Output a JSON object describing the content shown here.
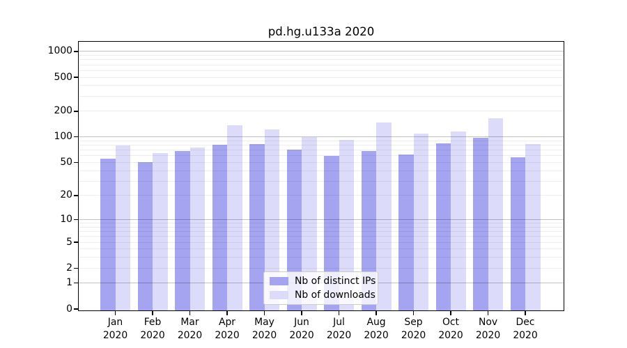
{
  "title": "pd.hg.u133a 2020",
  "chart_data": {
    "type": "bar",
    "title": "pd.hg.u133a 2020",
    "x_months": [
      "Jan",
      "Feb",
      "Mar",
      "Apr",
      "May",
      "Jun",
      "Jul",
      "Aug",
      "Sep",
      "Oct",
      "Nov",
      "Dec"
    ],
    "x_year": "2020",
    "series": [
      {
        "name": "Nb of distinct IPs",
        "color": "#a4a4f0",
        "values": [
          55,
          50,
          68,
          81,
          83,
          71,
          60,
          68,
          62,
          84,
          97,
          58
        ]
      },
      {
        "name": "Nb of downloads",
        "color": "#dcdcfa",
        "values": [
          80,
          65,
          75,
          138,
          122,
          100,
          93,
          148,
          110,
          116,
          165,
          82
        ]
      }
    ],
    "yscale": "log10(value+1)",
    "yticks": [
      0,
      1,
      2,
      5,
      10,
      20,
      50,
      100,
      200,
      500,
      1000
    ],
    "minor_gridlines": [
      2,
      3,
      4,
      5,
      6,
      7,
      8,
      9,
      20,
      30,
      40,
      50,
      60,
      70,
      80,
      90,
      200,
      300,
      400,
      500,
      600,
      700,
      800,
      900
    ],
    "major_gridlines": [
      1,
      10,
      100,
      1000
    ],
    "ylim": [
      0,
      1300
    ],
    "xlabel": "",
    "ylabel": "",
    "grid": "horizontal, drawn over bars",
    "legend_position": "lower center"
  },
  "colors": {
    "bar_distinct_ips": "#a4a4f0",
    "bar_downloads": "#dcdcfa",
    "spine": "#000000",
    "major_grid": "#c6c6c6",
    "minor_grid": "#eeeeee",
    "legend_border": "#cccccc"
  }
}
